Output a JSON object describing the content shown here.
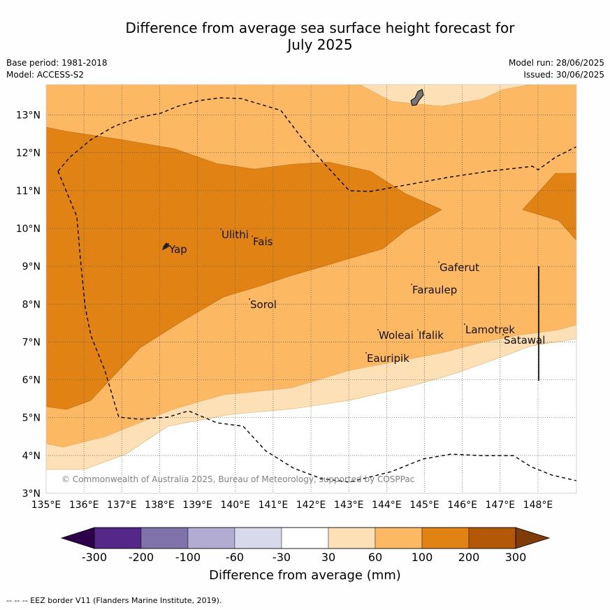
{
  "title_line1": "Difference from average sea surface height forecast for",
  "title_line2": "July 2025",
  "meta_left": [
    "Base period: 1981-2018",
    "Model: ACCESS-S2"
  ],
  "meta_right": [
    "Model run: 28/06/2025",
    "Issued: 30/06/2025"
  ],
  "lon_ticks": [
    "135°E",
    "136°E",
    "137°E",
    "138°E",
    "139°E",
    "140°E",
    "141°E",
    "142°E",
    "143°E",
    "144°E",
    "145°E",
    "146°E",
    "147°E",
    "148°E"
  ],
  "lat_ticks": [
    "3°N",
    "4°N",
    "5°N",
    "6°N",
    "7°N",
    "8°N",
    "9°N",
    "10°N",
    "11°N",
    "12°N",
    "13°N"
  ],
  "places": [
    "Ulithi",
    "Fais",
    "Yap",
    "Gaferut",
    "Faraulep",
    "Sorol",
    "Lamotrek",
    "Woleai",
    "Ifalik",
    "Satawal",
    "Eauripik"
  ],
  "copyright": "© Commonwealth of Australia 2025, Bureau of Meteorology, supported by COSPPac",
  "colorbar": {
    "tick_labels": [
      "-300",
      "-200",
      "-100",
      "-60",
      "-30",
      "30",
      "60",
      "100",
      "200",
      "300"
    ],
    "colors": [
      "#2d004b",
      "#542788",
      "#8073ac",
      "#b2abd2",
      "#d8daeb",
      "#ffffff",
      "#fee0b6",
      "#fdb863",
      "#e08214",
      "#b35806",
      "#7f3b08"
    ],
    "title": "Difference from average (mm)"
  },
  "footnote": "--  --  -- EEZ border V11 (Flanders Marine Institute, 2019)."
}
